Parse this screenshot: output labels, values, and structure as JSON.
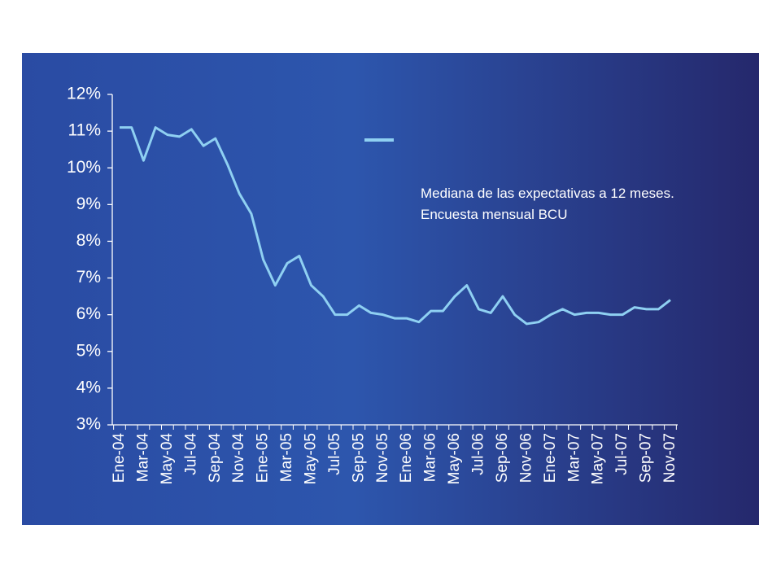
{
  "chart_data": {
    "type": "line",
    "categories": [
      "Ene-04",
      null,
      "Mar-04",
      null,
      "May-04",
      null,
      "Jul-04",
      null,
      "Sep-04",
      null,
      "Nov-04",
      null,
      "Ene-05",
      null,
      "Mar-05",
      null,
      "May-05",
      null,
      "Jul-05",
      null,
      "Sep-05",
      null,
      "Nov-05",
      null,
      "Ene-06",
      null,
      "Mar-06",
      null,
      "May-06",
      null,
      "Jul-06",
      null,
      "Sep-06",
      null,
      "Nov-06",
      null,
      "Ene-07",
      null,
      "Mar-07",
      null,
      "May-07",
      null,
      "Jul-07",
      null,
      "Sep-07",
      null,
      "Nov-07"
    ],
    "series": [
      {
        "name": "Mediana de las expectativas a 12 meses. Encuesta mensual BCU",
        "color": "#8fd0f2",
        "values": [
          11.1,
          11.1,
          10.2,
          11.1,
          10.9,
          10.85,
          11.05,
          10.6,
          10.8,
          10.1,
          9.3,
          8.75,
          7.5,
          6.8,
          7.4,
          7.6,
          6.8,
          6.5,
          6.0,
          6.0,
          6.25,
          6.05,
          6.0,
          5.9,
          5.9,
          5.8,
          6.1,
          6.1,
          6.5,
          6.8,
          6.15,
          6.05,
          6.5,
          6.0,
          5.75,
          5.8,
          6.0,
          6.15,
          6.0,
          6.05,
          6.05,
          6.0,
          6.0,
          6.2,
          6.15,
          6.15,
          6.4
        ]
      }
    ],
    "ylim": [
      3,
      12
    ],
    "yticks": [
      {
        "value": 3,
        "label": "3%"
      },
      {
        "value": 4,
        "label": "4%"
      },
      {
        "value": 5,
        "label": "5%"
      },
      {
        "value": 6,
        "label": "6%"
      },
      {
        "value": 7,
        "label": "7%"
      },
      {
        "value": 8,
        "label": "8%"
      },
      {
        "value": 9,
        "label": "9%"
      },
      {
        "value": 10,
        "label": "10%"
      },
      {
        "value": 11,
        "label": "11%"
      },
      {
        "value": 12,
        "label": "12%"
      }
    ],
    "grid": false,
    "legend": "upper right"
  }
}
